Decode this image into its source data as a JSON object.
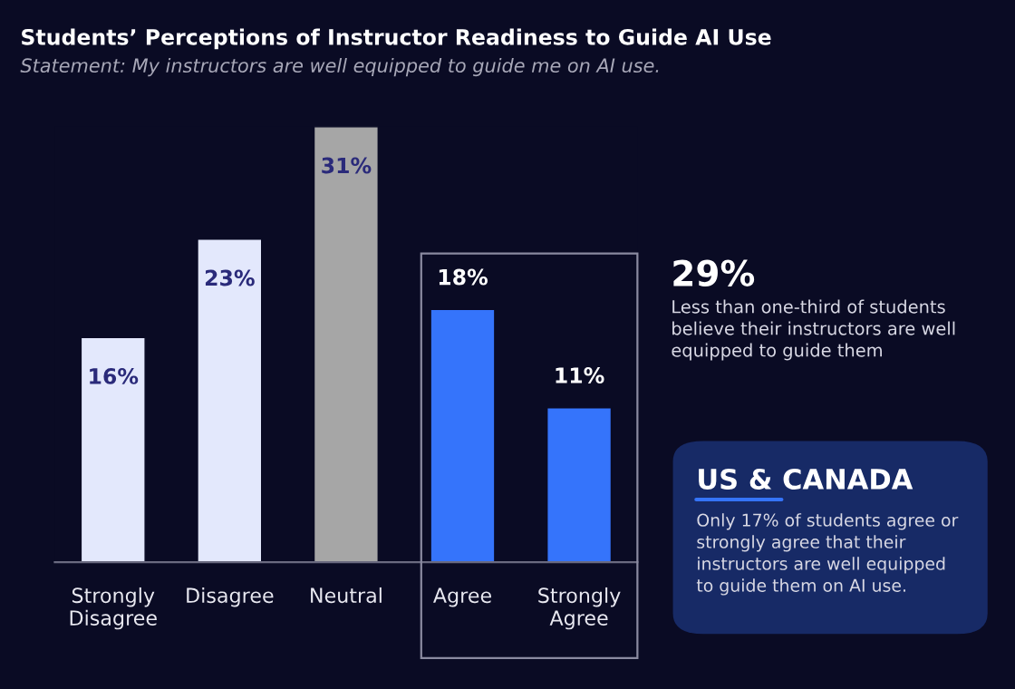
{
  "chart_data": {
    "type": "bar",
    "title": "Students’ Perceptions of Instructor Readiness to Guide AI Use",
    "subtitle": "Statement: My instructors are well equipped to guide me on AI use.",
    "categories": [
      "Strongly\nDisagree",
      "Disagree",
      "Neutral",
      "Agree",
      "Strongly\nAgree"
    ],
    "values": [
      16,
      23,
      31,
      18,
      11
    ],
    "colors": [
      "#e3e8fc",
      "#e3e8fc",
      "#a6a6a6",
      "#3574fb",
      "#3574fb"
    ],
    "value_labels": [
      "16%",
      "23%",
      "31%",
      "18%",
      "11%"
    ],
    "tick_labels": "x",
    "grid": false,
    "legend": false,
    "annotations": [
      "29%",
      "Less than one-third of students\nbelieve their instructors are well\nequipped to guide them",
      "US & CANADA",
      "Only 17% of students agree or\nstrongly agree that their\ninstructors are well equipped\nto guide them on AI use."
    ]
  }
}
